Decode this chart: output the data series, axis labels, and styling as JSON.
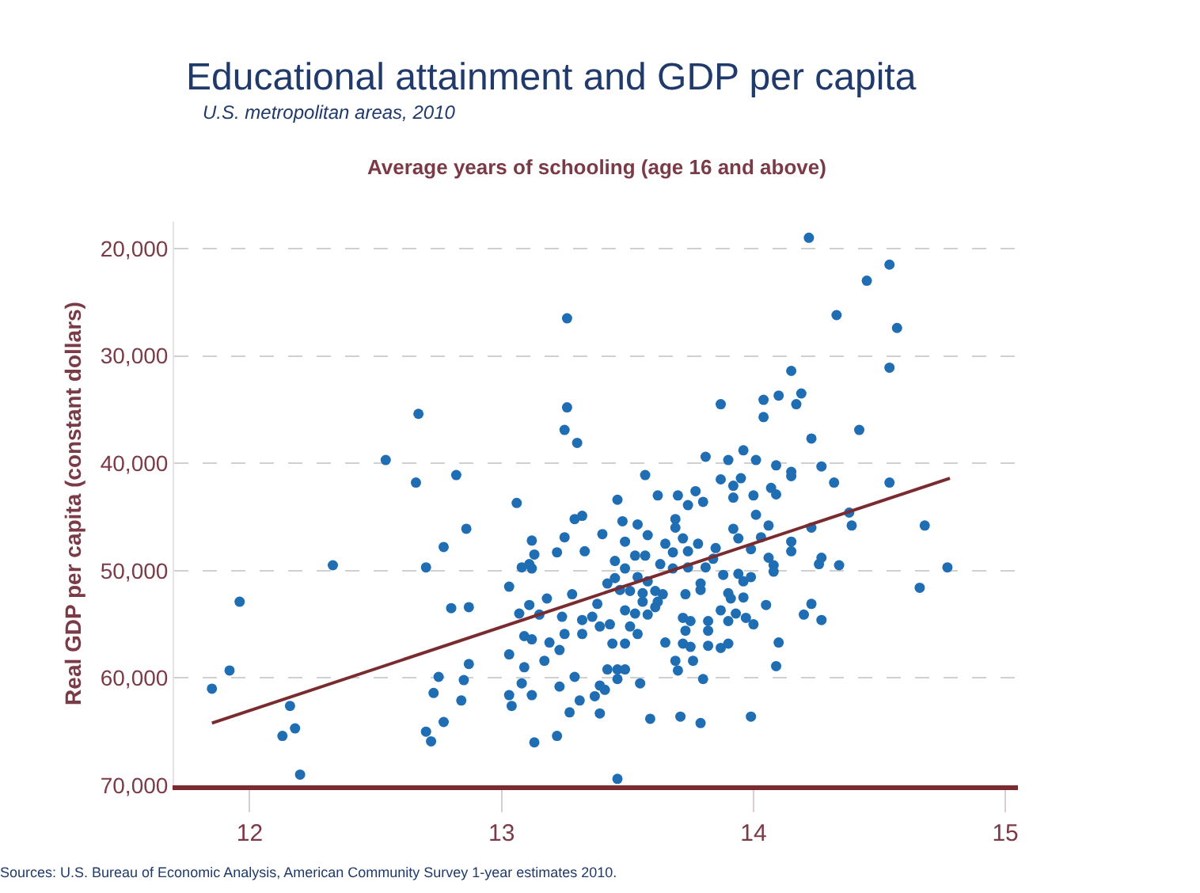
{
  "chart_data": {
    "type": "scatter",
    "title": "Educational attainment and GDP per capita",
    "subtitle": "U.S. metropolitan areas, 2010",
    "xlabel": "Average years of schooling (age 16 and above)",
    "ylabel": "Real GDP per capita (constant dollars)",
    "annotations": [
      "Sources: U.S. Bureau of Economic Analysis, American Community Survey 1-year estimates 2010."
    ],
    "xlim": [
      11.7,
      15.05
    ],
    "xticks": [
      12,
      13,
      14,
      15
    ],
    "ylim": [
      70000,
      17500
    ],
    "yticks": [
      {
        "value": 20000,
        "label": "20,000"
      },
      {
        "value": 30000,
        "label": "30,000"
      },
      {
        "value": 40000,
        "label": "40,000"
      },
      {
        "value": 50000,
        "label": "50,000"
      },
      {
        "value": 60000,
        "label": "60,000"
      },
      {
        "value": 70000,
        "label": "70,000"
      }
    ],
    "grid": "y",
    "marker": "circle",
    "series": [
      {
        "color": "#1f6db3",
        "x": [
          13.26,
          12.67,
          13.26,
          13.25,
          13.3,
          12.54,
          12.66,
          12.82,
          13.06,
          13.29,
          13.32,
          12.86,
          14.22,
          14.54,
          14.45,
          14.33,
          14.57,
          14.15,
          14.54,
          14.04,
          14.1,
          14.19,
          14.17,
          13.87,
          14.04,
          14.42,
          14.23,
          13.81,
          13.9,
          13.96,
          14.01,
          14.09,
          14.15,
          14.15,
          14.27,
          13.57,
          13.87,
          13.95,
          13.92,
          14.07,
          14.09,
          14.32,
          14.54,
          13.62,
          13.7,
          13.77,
          13.8,
          13.74,
          13.92,
          14.0,
          13.46,
          14.01,
          13.69,
          13.48,
          13.54,
          14.38,
          14.39,
          14.68,
          12.77,
          12.33,
          12.7,
          11.96,
          12.8,
          12.87,
          11.92,
          11.85,
          12.16,
          12.18,
          12.13,
          12.2,
          12.75,
          12.73,
          12.85,
          12.87,
          12.84,
          12.77,
          12.7,
          12.72,
          13.03,
          13.03,
          13.04,
          13.08,
          13.09,
          13.12,
          13.13,
          13.22,
          13.17,
          13.23,
          13.29,
          13.31,
          13.27,
          13.37,
          13.39,
          13.03,
          13.07,
          13.11,
          13.15,
          13.18,
          13.28,
          13.24,
          13.09,
          13.12,
          13.19,
          13.23,
          13.25,
          13.32,
          13.32,
          13.36,
          13.38,
          13.39,
          13.08,
          13.12,
          13.11,
          13.13,
          13.12,
          13.22,
          13.25,
          13.33,
          13.4,
          13.69,
          13.92,
          14.06,
          14.23,
          13.58,
          13.65,
          13.72,
          13.78,
          13.85,
          13.94,
          13.99,
          14.03,
          14.15,
          14.15,
          13.49,
          13.53,
          13.57,
          13.68,
          13.74,
          13.84,
          13.45,
          13.45,
          13.49,
          13.54,
          13.58,
          13.63,
          13.68,
          13.74,
          13.81,
          13.88,
          13.94,
          13.96,
          13.99,
          14.06,
          14.08,
          14.08,
          14.26,
          14.27,
          14.34,
          14.77,
          14.66,
          13.42,
          13.47,
          13.51,
          13.56,
          13.61,
          13.64,
          13.73,
          13.79,
          13.79,
          13.9,
          13.91,
          13.96,
          14.05,
          13.43,
          13.49,
          13.53,
          13.56,
          13.58,
          13.61,
          13.62,
          13.72,
          13.75,
          13.82,
          13.87,
          13.9,
          13.93,
          13.97,
          14.0,
          13.82,
          13.73,
          13.51,
          13.54,
          13.65,
          13.72,
          13.75,
          13.82,
          13.87,
          13.9,
          13.44,
          13.49,
          14.1,
          14.09,
          14.2,
          14.23,
          14.27,
          13.69,
          13.7,
          13.76,
          13.8,
          13.42,
          13.46,
          13.49,
          13.46,
          13.39,
          13.41,
          13.55,
          13.59,
          13.71,
          13.79,
          13.99,
          13.46
        ],
        "values": [
          26500,
          35400,
          34800,
          36900,
          38100,
          39700,
          41800,
          41100,
          43700,
          45200,
          44900,
          46100,
          19000,
          21500,
          23000,
          26200,
          27400,
          31400,
          31100,
          34100,
          33700,
          33500,
          34500,
          34500,
          35700,
          36900,
          37700,
          39400,
          39700,
          38800,
          39700,
          40200,
          40800,
          41200,
          40300,
          41100,
          41500,
          41400,
          42100,
          42300,
          42900,
          41800,
          41800,
          43000,
          43000,
          42600,
          43600,
          43900,
          43200,
          43000,
          43400,
          44800,
          45200,
          45400,
          45700,
          44600,
          45800,
          45800,
          47800,
          49500,
          49700,
          52900,
          53500,
          53400,
          59300,
          61000,
          62600,
          64700,
          65400,
          69000,
          59900,
          61400,
          60200,
          58700,
          62100,
          64100,
          65000,
          65900,
          57800,
          61600,
          62600,
          60500,
          59000,
          61600,
          66000,
          65400,
          58400,
          60800,
          59900,
          62100,
          63200,
          61700,
          63300,
          51500,
          54000,
          53200,
          54100,
          52600,
          52200,
          54300,
          56100,
          56400,
          56700,
          57400,
          55900,
          55900,
          54600,
          54300,
          53100,
          55200,
          49700,
          49800,
          49400,
          48500,
          47200,
          48300,
          46900,
          48200,
          46600,
          46000,
          46100,
          45800,
          46000,
          46700,
          47500,
          47000,
          47500,
          47900,
          47000,
          48000,
          46900,
          47300,
          48200,
          47300,
          48600,
          48600,
          48300,
          48200,
          48900,
          49100,
          50700,
          49800,
          50600,
          51000,
          49400,
          49800,
          49700,
          49700,
          50400,
          50300,
          51000,
          50600,
          48800,
          49500,
          50100,
          49400,
          48800,
          49500,
          49700,
          51600,
          51200,
          51800,
          51900,
          52100,
          51900,
          52200,
          52200,
          51200,
          51800,
          52100,
          52600,
          52500,
          53200,
          55000,
          53700,
          54000,
          52900,
          54100,
          53400,
          52900,
          54400,
          54700,
          54700,
          53700,
          54700,
          54000,
          54400,
          55000,
          55600,
          55600,
          55200,
          55900,
          56700,
          56800,
          57100,
          57000,
          57200,
          56800,
          56800,
          56800,
          56700,
          58900,
          54100,
          53100,
          54600,
          58400,
          59300,
          58400,
          60100,
          59200,
          59200,
          59200,
          60100,
          60700,
          61100,
          60500,
          63800,
          63600,
          64200,
          63600,
          69400
        ]
      },
      {
        "type": "line",
        "marker": "none",
        "color": "#7a2b2f",
        "x": [
          11.85,
          14.78
        ],
        "values": [
          64200,
          41400
        ]
      }
    ]
  }
}
